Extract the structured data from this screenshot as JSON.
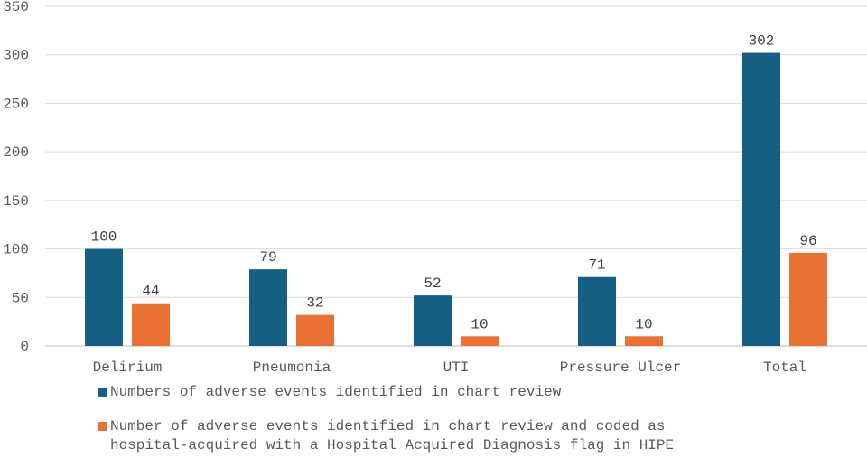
{
  "chart_data": {
    "type": "bar",
    "categories": [
      "Delirium",
      "Pneumonia",
      "UTI",
      "Pressure Ulcer",
      "Total"
    ],
    "series": [
      {
        "name": "Numbers of adverse events identified in chart review",
        "color": "#156082",
        "values": [
          100,
          79,
          52,
          71,
          302
        ]
      },
      {
        "name": "Number of adverse events identified in chart review and coded as\nhospital-acquired with a Hospital Acquired Diagnosis flag in HIPE",
        "color": "#e97132",
        "values": [
          44,
          32,
          10,
          10,
          96
        ]
      }
    ],
    "yticks": [
      0,
      50,
      100,
      150,
      200,
      250,
      300,
      350
    ],
    "ylim": [
      0,
      350
    ],
    "grid": true,
    "legend_position": "bottom"
  }
}
